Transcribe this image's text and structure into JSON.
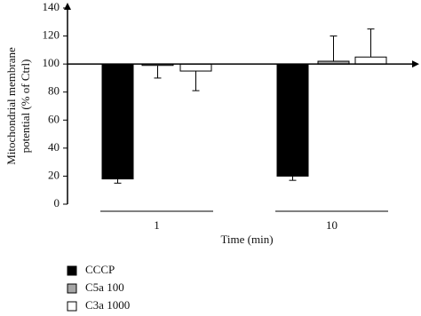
{
  "chart_data": {
    "type": "bar",
    "y_label": [
      "Mitochondrial membrane",
      "potential (% of Ctrl)"
    ],
    "x_label": "Time (min)",
    "categories": [
      "1",
      "10"
    ],
    "baseline": 100,
    "series": [
      {
        "name": "CCCP",
        "color": "#000000",
        "values": [
          18,
          20
        ],
        "errors": [
          3,
          3
        ]
      },
      {
        "name": "C5a 100",
        "color": "#a6a6a6",
        "values": [
          99,
          102
        ],
        "errors": [
          9,
          18
        ]
      },
      {
        "name": "C3a 1000",
        "color": "#ffffff",
        "values": [
          95,
          105
        ],
        "errors": [
          14,
          20
        ]
      }
    ],
    "ylim": [
      0,
      140
    ],
    "yticks": [
      0,
      20,
      40,
      60,
      80,
      100,
      120,
      140
    ],
    "legend": "bottom-left"
  }
}
